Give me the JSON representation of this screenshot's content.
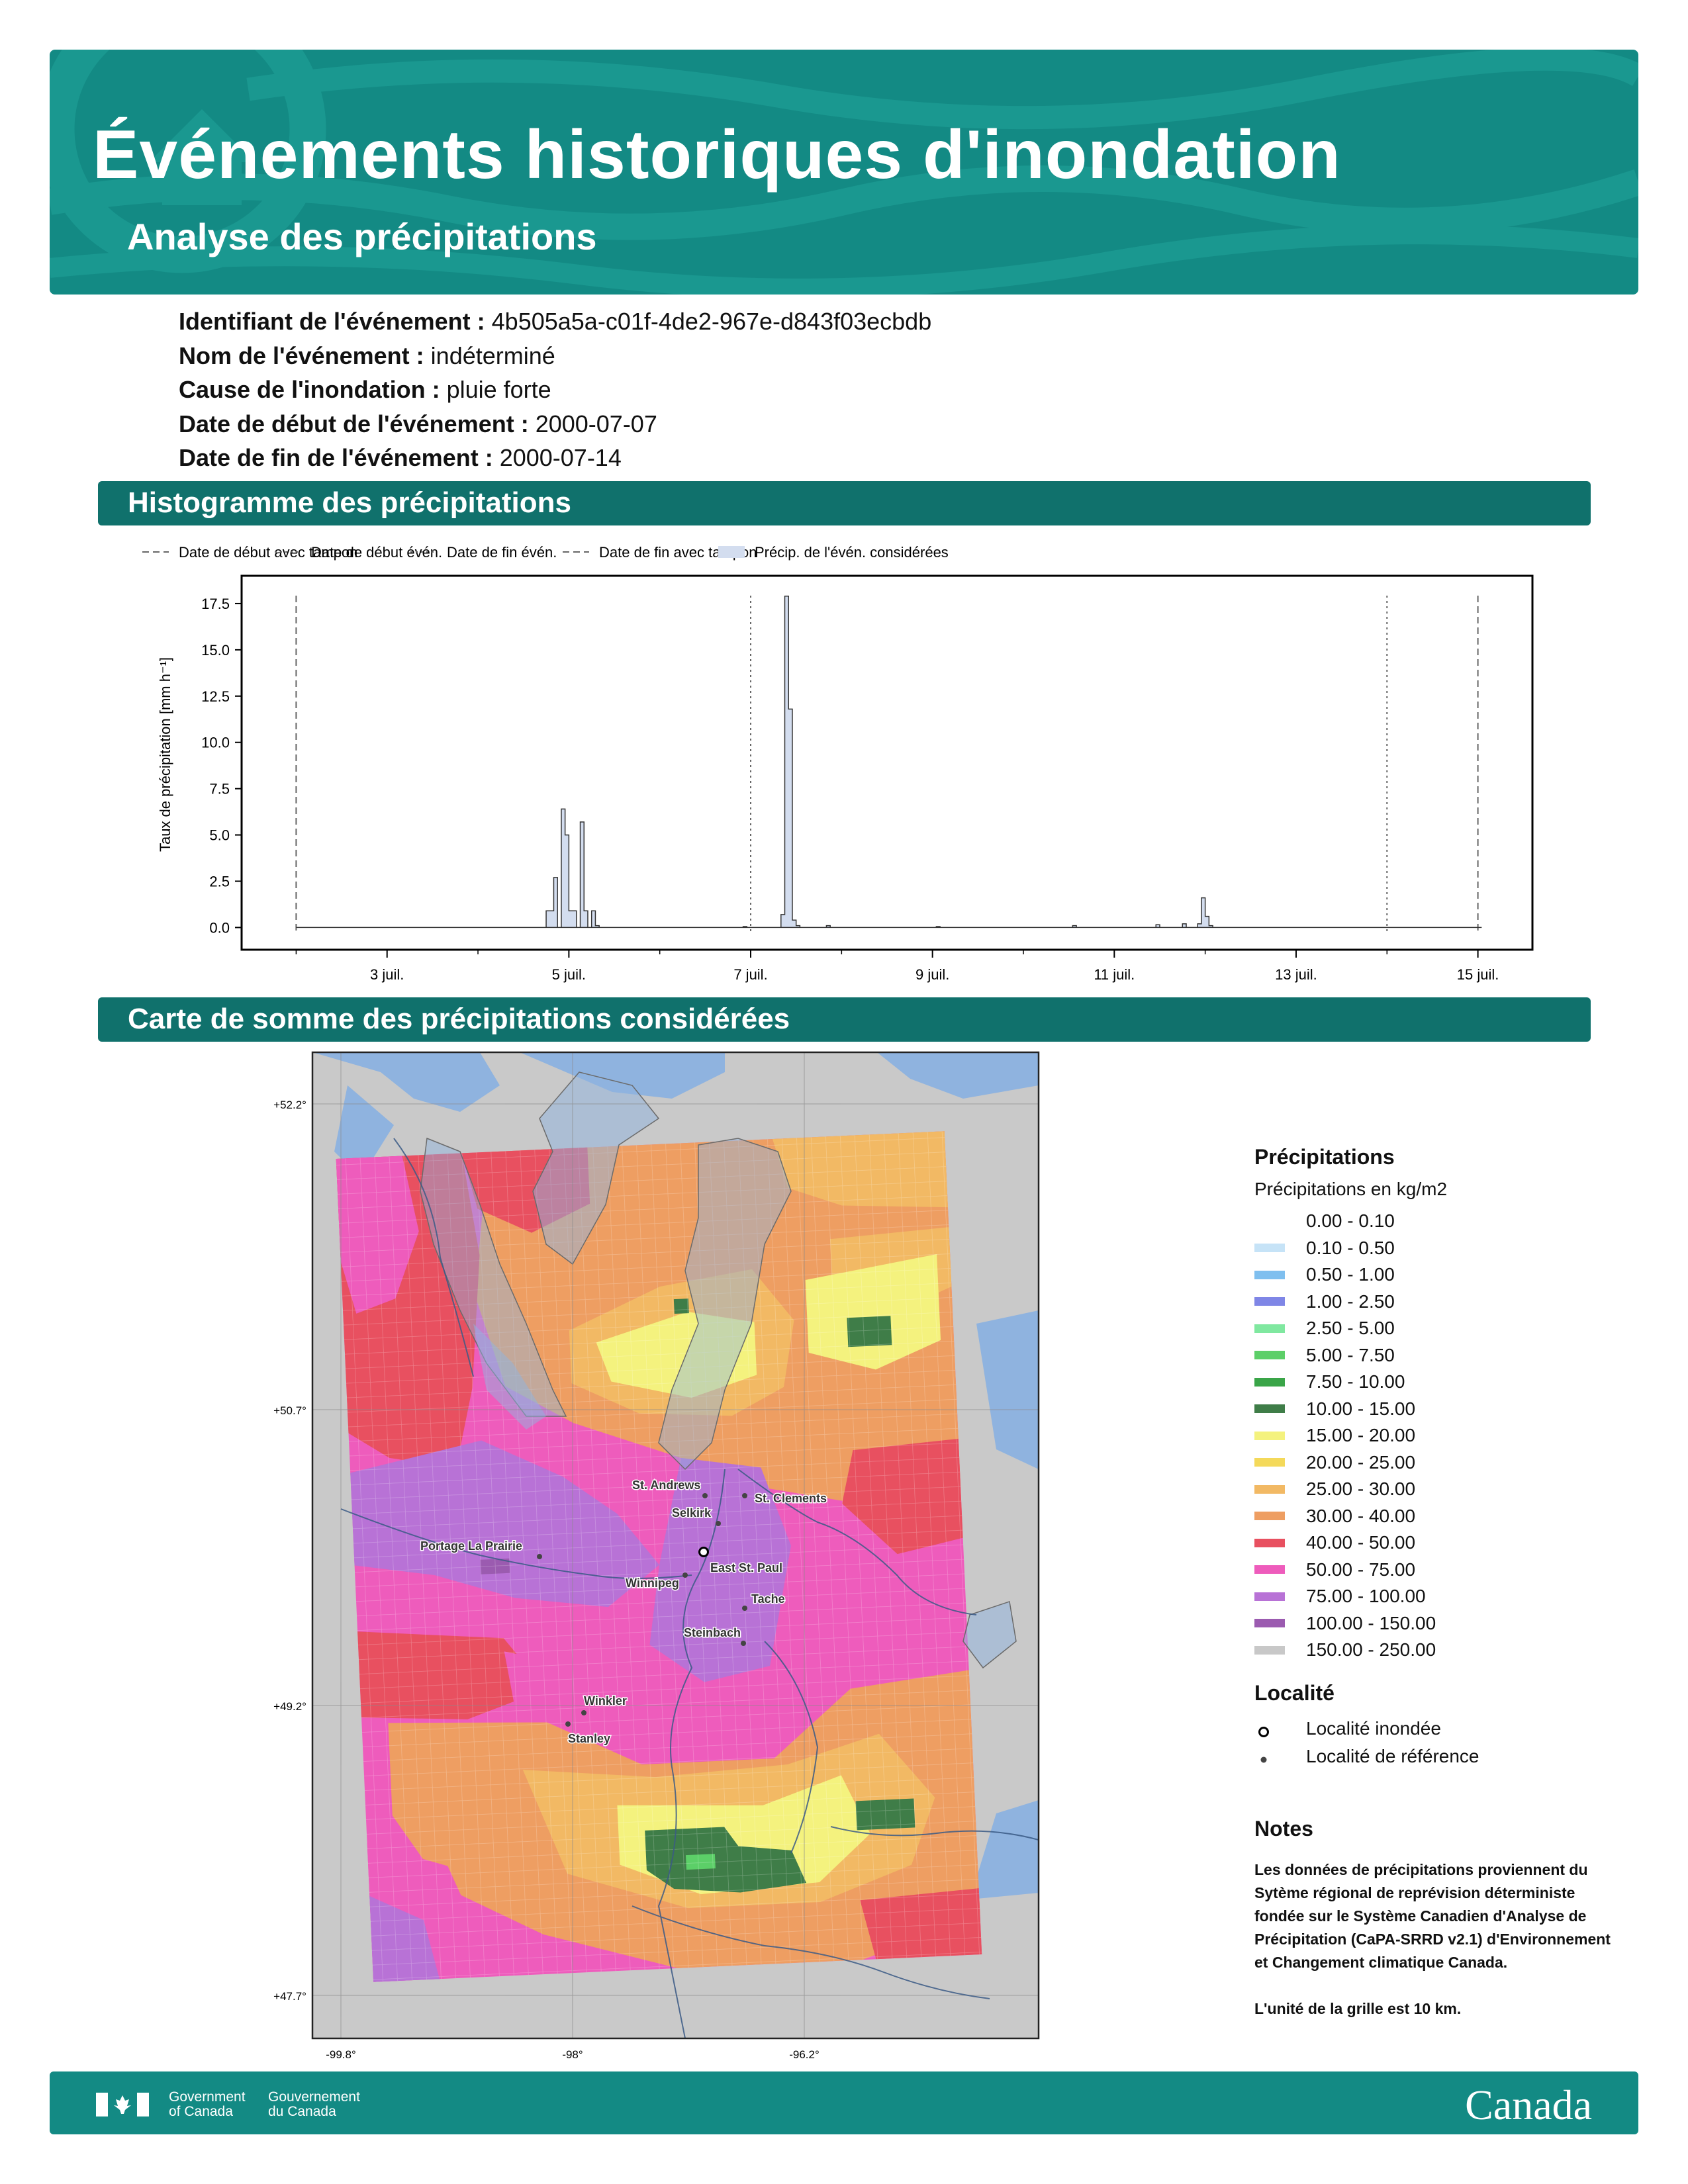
{
  "header": {
    "title": "Événements historiques d'inondation",
    "subtitle": "Analyse des précipitations"
  },
  "event_info": [
    {
      "label": "Identifiant de l'événement :",
      "value": "4b505a5a-c01f-4de2-967e-d843f03ecbdb"
    },
    {
      "label": "Nom de l'événement :",
      "value": "indéterminé"
    },
    {
      "label": "Cause de l'inondation :",
      "value": "pluie forte"
    },
    {
      "label": "Date de début de l'événement :",
      "value": "2000-07-07"
    },
    {
      "label": "Date de fin de l'événement :",
      "value": "2000-07-14"
    }
  ],
  "sections": {
    "histogram": "Histogramme des précipitations",
    "map": "Carte de somme des précipitations considérées"
  },
  "chart_data": {
    "type": "area",
    "ylabel": "Taux de précipitation [mm h⁻¹]",
    "ylim": [
      -1.2,
      19.0
    ],
    "yticks": [
      "0.0",
      "2.5",
      "5.0",
      "7.5",
      "10.0",
      "12.5",
      "15.0",
      "17.5"
    ],
    "xticks": [
      "3 juil.",
      "5 juil.",
      "7 juil.",
      "9 juil.",
      "11 juil.",
      "13 juil.",
      "15 juil."
    ],
    "x_domain_days": [
      1.4,
      15.6
    ],
    "legend": [
      {
        "name": "Date de début avec tampon",
        "style": "dashed"
      },
      {
        "name": "Date de début évén.",
        "style": "dotted"
      },
      {
        "name": "Date de fin évén.",
        "style": "dotted"
      },
      {
        "name": "Date de fin avec tampon",
        "style": "dashed"
      },
      {
        "name": "Précip. de l'évén. considérées",
        "style": "fill"
      }
    ],
    "vlines": [
      {
        "day": 2.0,
        "style": "dashed"
      },
      {
        "day": 7.0,
        "style": "dotted"
      },
      {
        "day": 14.0,
        "style": "dotted"
      },
      {
        "day": 15.0,
        "style": "dashed"
      }
    ],
    "bin_hours": 1,
    "start_day": 2.0,
    "peaks": [
      {
        "day": 4.75,
        "value": 0.9
      },
      {
        "day": 4.8,
        "value": 0.9
      },
      {
        "day": 4.85,
        "value": 2.7
      },
      {
        "day": 4.9,
        "value": 6.4
      },
      {
        "day": 4.94,
        "value": 5.0
      },
      {
        "day": 5.0,
        "value": 0.9
      },
      {
        "day": 5.06,
        "value": 0.9
      },
      {
        "day": 5.11,
        "value": 5.7
      },
      {
        "day": 5.16,
        "value": 0.9
      },
      {
        "day": 5.25,
        "value": 0.9
      },
      {
        "day": 5.3,
        "value": 0.1
      },
      {
        "day": 6.9,
        "value": 0.05
      },
      {
        "day": 7.33,
        "value": 0.7
      },
      {
        "day": 7.37,
        "value": 17.9
      },
      {
        "day": 7.41,
        "value": 11.8
      },
      {
        "day": 7.45,
        "value": 0.4
      },
      {
        "day": 7.5,
        "value": 0.1
      },
      {
        "day": 7.85,
        "value": 0.1
      },
      {
        "day": 9.05,
        "value": 0.05
      },
      {
        "day": 10.55,
        "value": 0.1
      },
      {
        "day": 11.45,
        "value": 0.15
      },
      {
        "day": 11.75,
        "value": 0.2
      },
      {
        "day": 11.9,
        "value": 0.2
      },
      {
        "day": 11.95,
        "value": 1.6
      },
      {
        "day": 12.0,
        "value": 0.6
      },
      {
        "day": 12.05,
        "value": 0.1
      }
    ]
  },
  "map": {
    "lat_labels": [
      "+52.2°",
      "+50.7°",
      "+49.2°",
      "+47.7°"
    ],
    "lon_labels": [
      "-99.8°",
      "-98°",
      "-96.2°"
    ],
    "places": [
      {
        "name": "St. Andrews",
        "type": "reference"
      },
      {
        "name": "St. Clements",
        "type": "reference"
      },
      {
        "name": "Selkirk",
        "type": "reference"
      },
      {
        "name": "Portage La Prairie",
        "type": "reference"
      },
      {
        "name": "East St. Paul",
        "type": "flooded"
      },
      {
        "name": "Winnipeg",
        "type": "reference"
      },
      {
        "name": "Tache",
        "type": "reference"
      },
      {
        "name": "Steinbach",
        "type": "reference"
      },
      {
        "name": "Winkler",
        "type": "reference"
      },
      {
        "name": "Stanley",
        "type": "reference"
      }
    ]
  },
  "legend": {
    "title": "Précipitations",
    "subtitle": "Précipitations en kg/m2",
    "items": [
      {
        "label": "0.00 - 0.10",
        "color": "#ffffff"
      },
      {
        "label": "0.10 - 0.50",
        "color": "#c6e3f7"
      },
      {
        "label": "0.50 - 1.00",
        "color": "#7fbfef"
      },
      {
        "label": "1.00 - 2.50",
        "color": "#7f86e6"
      },
      {
        "label": "2.50 - 5.00",
        "color": "#80e8a0"
      },
      {
        "label": "5.00 - 7.50",
        "color": "#5ccf68"
      },
      {
        "label": "7.50 - 10.00",
        "color": "#3aa548"
      },
      {
        "label": "10.00 - 15.00",
        "color": "#3f7d48"
      },
      {
        "label": "15.00 - 20.00",
        "color": "#f4f27e"
      },
      {
        "label": "20.00 - 25.00",
        "color": "#f4d95a"
      },
      {
        "label": "25.00 - 30.00",
        "color": "#f2b964"
      },
      {
        "label": "30.00 - 40.00",
        "color": "#ee9e62"
      },
      {
        "label": "40.00 - 50.00",
        "color": "#e85060"
      },
      {
        "label": "50.00 - 75.00",
        "color": "#ee5cbc"
      },
      {
        "label": "75.00 - 100.00",
        "color": "#b872d6"
      },
      {
        "label": "100.00 - 150.00",
        "color": "#9b5bb0"
      },
      {
        "label": "150.00 - 250.00",
        "color": "#c8c8c8"
      }
    ]
  },
  "locality": {
    "title": "Localité",
    "flooded": "Localité inondée",
    "reference": "Localité de référence"
  },
  "notes": {
    "title": "Notes",
    "text1": "Les données de précipitations proviennent du Sytème régional de reprévision déterministe fondée sur le Système Canadien d'Analyse de Précipitation (CaPA-SRRD v2.1) d'Environnement et Changement climatique Canada.",
    "text2": "L'unité de la grille est 10 km."
  },
  "footer": {
    "gov_en": [
      "Government",
      "of Canada"
    ],
    "gov_fr": [
      "Gouvernement",
      "du Canada"
    ],
    "wordmark": "Canada"
  }
}
